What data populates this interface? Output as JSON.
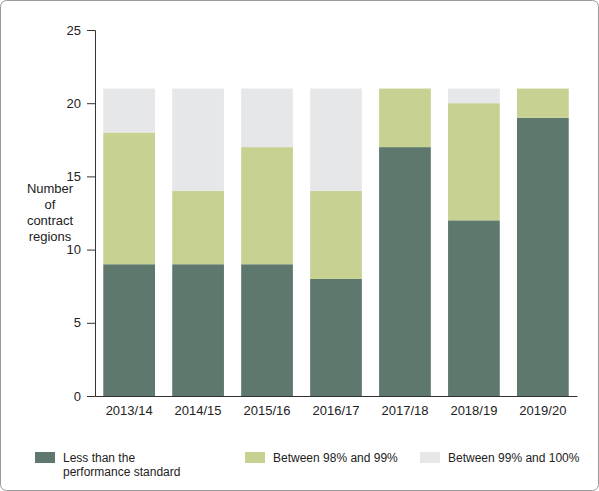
{
  "chart_data": {
    "type": "bar",
    "stacked": true,
    "grid": false,
    "legend": "bottom",
    "y_label": "Number of contract regions",
    "categories": [
      "2013/14",
      "2014/15",
      "2015/16",
      "2016/17",
      "2017/18",
      "2018/19",
      "2019/20"
    ],
    "series": [
      {
        "name": "Less than the performance standard",
        "color": "#5f786e",
        "values": [
          9,
          9,
          9,
          8,
          17,
          12,
          19
        ]
      },
      {
        "name": "Between 98% and 99%",
        "color": "#c6d192",
        "values": [
          9,
          5,
          8,
          6,
          4,
          8,
          2
        ]
      },
      {
        "name": "Between 99% and 100%",
        "color": "#e6e7e8",
        "values": [
          3,
          7,
          4,
          7,
          0,
          1,
          0
        ]
      }
    ],
    "ylim": [
      0,
      25
    ],
    "yticks": [
      0,
      5,
      10,
      15,
      20,
      25
    ]
  }
}
